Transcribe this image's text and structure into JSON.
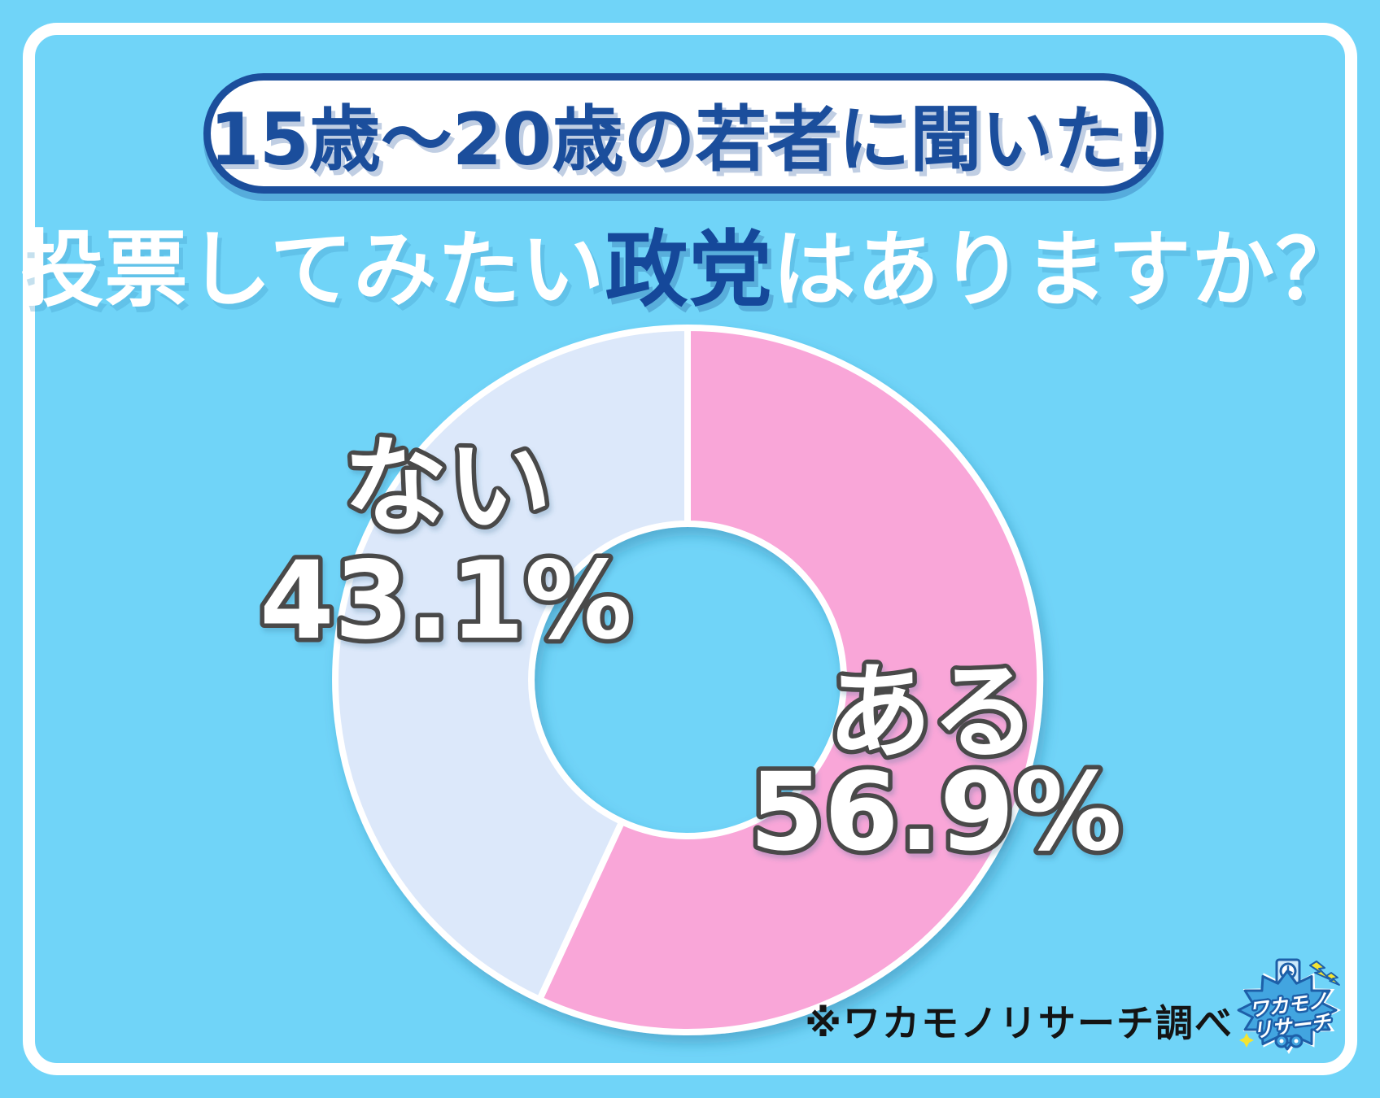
{
  "banner": {
    "text": "15歳〜20歳の若者に聞いた!"
  },
  "heading": {
    "pre": "投票してみたい",
    "highlight": "政党",
    "post": "はありますか？"
  },
  "chart_data": {
    "type": "pie",
    "subtype": "donut",
    "title": "投票してみたい政党はありますか？",
    "categories": [
      "ある",
      "ない"
    ],
    "values": [
      56.9,
      43.1
    ],
    "unit": "%",
    "colors": [
      "#f9a6d8",
      "#dce8fa"
    ],
    "start_angle_deg": 0,
    "direction": "clockwise",
    "legend_position": "none",
    "labels": [
      {
        "name": "ある",
        "pct": "56.9%"
      },
      {
        "name": "ない",
        "pct": "43.1%"
      }
    ]
  },
  "annotation": {
    "text": "※ワカモノリサーチ調べ"
  },
  "logo": {
    "line1": "ワカモノ",
    "line2": "リサーチ"
  },
  "colors": {
    "background": "#70d4f8",
    "frame": "#ffffff",
    "navy": "#1b4e9c",
    "pink": "#f9a6d8",
    "lavender": "#dce8fa",
    "label_outline": "#4a4a4a",
    "annotation_text": "#141414"
  }
}
